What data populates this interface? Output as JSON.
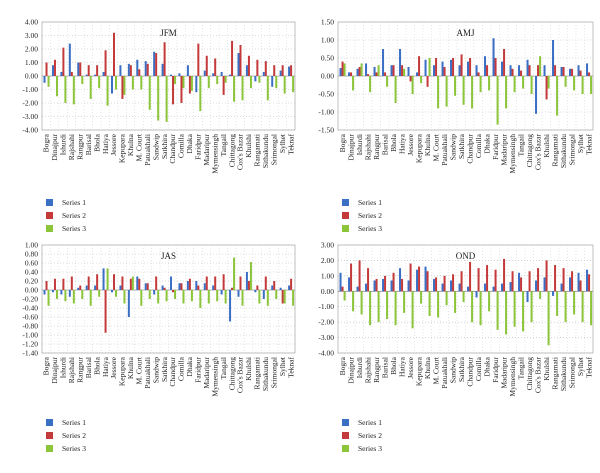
{
  "chart_data": [
    {
      "type": "bar",
      "title": "JFM",
      "ylim": [
        -4,
        4
      ],
      "yticks": [
        "4.00",
        "3.00",
        "2.00",
        "1.00",
        "0.00",
        "-1.00",
        "-2.00",
        "-3.00",
        "-4.00"
      ],
      "grid": true,
      "legend_position": "bottom-left",
      "categories": [
        "Bogra",
        "Dinajpur",
        "Ishurdi",
        "Rajshahi",
        "Rangpur",
        "Barisal",
        "Bhola",
        "Hatiya",
        "Jessore",
        "Kepupara",
        "Khulna",
        "M. Court",
        "Patuakhali",
        "Sandwip",
        "Satkhira",
        "Chandpur",
        "Comilla",
        "Dhaka",
        "Faridpur",
        "Madaripur",
        "Mymensingh",
        "Tangail",
        "Chittagong",
        "Cox's Bazar",
        "Khulshi",
        "Rangamati",
        "Sithakundu",
        "Srimongal",
        "Sylhet",
        "Teknaf"
      ],
      "series": [
        {
          "name": "Series 1",
          "color": "#3a6fc4",
          "values": [
            -0.5,
            0.8,
            0.3,
            2.4,
            1.0,
            0.1,
            0.1,
            0.3,
            -1.3,
            0.8,
            0.9,
            1.2,
            1.1,
            1.8,
            0.9,
            0.1,
            0.2,
            0.8,
            -1.2,
            0.4,
            0.2,
            0.3,
            0.1,
            1.7,
            0.8,
            -0.4,
            0.3,
            -0.8,
            0.4,
            0.7
          ]
        },
        {
          "name": "Series 2",
          "color": "#c43a3a",
          "values": [
            1.0,
            1.2,
            2.1,
            0.3,
            1.0,
            0.8,
            0.8,
            1.9,
            3.2,
            -1.7,
            0.8,
            0.5,
            0.9,
            1.7,
            2.5,
            -2.1,
            -2.0,
            -1.3,
            2.4,
            1.5,
            1.3,
            -1.4,
            2.6,
            2.3,
            1.5,
            1.2,
            1.1,
            0.8,
            0.8,
            0.8
          ]
        },
        {
          "name": "Series 3",
          "color": "#8cc43a",
          "values": [
            -0.8,
            -1.5,
            -2.0,
            -2.1,
            -0.6,
            -1.7,
            -0.9,
            -2.2,
            -1.0,
            -1.4,
            -1.0,
            -1.0,
            -2.5,
            -3.3,
            -3.4,
            -0.6,
            -0.9,
            -1.1,
            -2.6,
            -0.9,
            -0.6,
            -0.5,
            -1.9,
            -1.8,
            -0.9,
            -0.5,
            -1.8,
            -0.9,
            -1.3,
            -1.2
          ]
        }
      ]
    },
    {
      "type": "bar",
      "title": "AMJ",
      "ylim": [
        -1.5,
        1.5
      ],
      "yticks": [
        "1.50",
        "1.00",
        "0.50",
        "0.00",
        "-0.50",
        "-1.00",
        "-1.50"
      ],
      "grid": true,
      "legend_position": "bottom-left",
      "categories": [
        "Bogra",
        "Dinajpur",
        "Ishurdi",
        "Rajshahi",
        "Rangpur",
        "Barisal",
        "Bhola",
        "Hatiya",
        "Jessore",
        "Kepupara",
        "Khulna",
        "M. Court",
        "Patuakhali",
        "Sandwip",
        "Satkhira",
        "Chandpur",
        "Comilla",
        "Dhaka",
        "Faridpur",
        "Madaripur",
        "Mymensingh",
        "Tangail",
        "Chittagong",
        "Cox's Bazar",
        "Khulshi",
        "Rangamati",
        "Sithakundu",
        "Srimongal",
        "Sylhet",
        "Teknaf"
      ],
      "series": [
        {
          "name": "Series 1",
          "color": "#3a6fc4",
          "values": [
            0.22,
            0.1,
            0.2,
            0.35,
            0.25,
            0.75,
            0.3,
            0.75,
            0.25,
            0.1,
            0.45,
            0.3,
            0.4,
            0.45,
            0.3,
            0.4,
            0.3,
            0.55,
            1.05,
            0.4,
            0.3,
            0.3,
            0.45,
            -1.05,
            0.3,
            1.0,
            0.25,
            0.2,
            0.3,
            0.35
          ]
        },
        {
          "name": "Series 2",
          "color": "#c43a3a",
          "values": [
            0.4,
            0.1,
            0.25,
            0.05,
            0.1,
            0.1,
            0.3,
            0.3,
            -0.15,
            0.55,
            -0.3,
            0.5,
            0.25,
            0.5,
            0.6,
            0.5,
            0.1,
            0.3,
            0.5,
            0.75,
            0.2,
            0.15,
            0.3,
            0.3,
            -0.65,
            0.3,
            0.25,
            0.2,
            0.15,
            0.1
          ]
        },
        {
          "name": "Series 3",
          "color": "#8cc43a",
          "values": [
            0.35,
            -0.4,
            0.35,
            -0.45,
            0.3,
            -0.3,
            -0.75,
            0.2,
            -0.5,
            -0.2,
            0.5,
            -0.9,
            -0.85,
            -0.55,
            -0.8,
            -0.9,
            -0.45,
            -0.4,
            -1.35,
            -0.9,
            -0.45,
            -0.35,
            -0.5,
            0.55,
            -0.35,
            -1.1,
            -0.3,
            -0.4,
            -0.5,
            -0.5
          ]
        }
      ]
    },
    {
      "type": "bar",
      "title": "JAS",
      "ylim": [
        -1.4,
        1.0
      ],
      "yticks": [
        "1.00",
        "0.80",
        "0.60",
        "0.40",
        "0.20",
        "0.00",
        "-0.20",
        "-0.40",
        "-0.60",
        "-0.80",
        "-1.00",
        "-1.20",
        "-1.40"
      ],
      "grid": true,
      "legend_position": "bottom-left",
      "categories": [
        "Bogra",
        "Dinajpur",
        "Ishurdi",
        "Rajshahi",
        "Rangpur",
        "Barisal",
        "Bhola",
        "Hatiya",
        "Jessore",
        "Kepupara",
        "Khulna",
        "M. Court",
        "Patuakhali",
        "Sandwip",
        "Satkhira",
        "Chandpur",
        "Comilla",
        "Dhaka",
        "Faridpur",
        "Madaripur",
        "Mymensingh",
        "Tangail",
        "Chittagong",
        "Cox's Bazar",
        "Khulshi",
        "Rangamati",
        "Sithakundu",
        "Srimongal",
        "Sylhet",
        "Teknaf"
      ],
      "series": [
        {
          "name": "Series 1",
          "color": "#3a6fc4",
          "values": [
            -0.1,
            -0.05,
            -0.1,
            -0.15,
            0.05,
            0.1,
            0.1,
            0.48,
            -0.05,
            0.1,
            -0.6,
            0.3,
            0.15,
            -0.1,
            0.1,
            0.3,
            0.15,
            0.2,
            0.2,
            0.15,
            0.1,
            -0.1,
            -0.7,
            -0.15,
            0.4,
            -0.05,
            -0.2,
            0.1,
            0.05,
            0.1
          ]
        },
        {
          "name": "Series 2",
          "color": "#c43a3a",
          "values": [
            0.2,
            0.25,
            0.25,
            0.3,
            0.1,
            0.3,
            0.35,
            -0.95,
            0.35,
            0.3,
            0.25,
            0.25,
            0.15,
            0.3,
            0.05,
            -0.05,
            0.15,
            0.25,
            0.1,
            0.3,
            0.3,
            0.35,
            0.05,
            0.3,
            0.2,
            0.1,
            0.3,
            0.2,
            -0.3,
            0.25
          ]
        },
        {
          "name": "Series 3",
          "color": "#8cc43a",
          "values": [
            -0.35,
            -0.2,
            -0.25,
            -0.3,
            -0.2,
            -0.35,
            -0.15,
            0.48,
            -0.15,
            -0.3,
            0.3,
            -0.35,
            -0.2,
            -0.3,
            -0.25,
            -0.2,
            -0.3,
            -0.25,
            -0.4,
            -0.3,
            -0.25,
            -0.3,
            0.72,
            -0.35,
            0.62,
            -0.3,
            -0.35,
            -0.2,
            -0.3,
            -0.35
          ]
        }
      ]
    },
    {
      "type": "bar",
      "title": "OND",
      "ylim": [
        -4,
        3
      ],
      "yticks": [
        "3.00",
        "2.00",
        "1.00",
        "0.00",
        "-1.00",
        "-2.00",
        "-3.00",
        "-4.00"
      ],
      "grid": true,
      "legend_position": "bottom-left",
      "categories": [
        "Bogra",
        "Dinajpur",
        "Ishurdi",
        "Rajshahi",
        "Rangpur",
        "Barisal",
        "Bhola",
        "Hatiya",
        "Jessore",
        "Kepupara",
        "Khulna",
        "M. Court",
        "Patuakhali",
        "Sandwip",
        "Satkhira",
        "Chandpur",
        "Comilla",
        "Dhaka",
        "Faridpur",
        "Madaripur",
        "Mymensingh",
        "Tangail",
        "Chittagong",
        "Cox's Bazar",
        "Khulshi",
        "Rangamati",
        "Sithakundu",
        "Srimongal",
        "Sylhet",
        "Teknaf"
      ],
      "series": [
        {
          "name": "Series 1",
          "color": "#3a6fc4",
          "values": [
            1.2,
            0.9,
            0.3,
            0.5,
            0.7,
            0.8,
            0.7,
            1.5,
            0.7,
            1.4,
            1.6,
            0.8,
            0.5,
            0.7,
            0.5,
            0.3,
            -0.4,
            0.5,
            0.3,
            0.5,
            0.6,
            1.2,
            -0.7,
            0.7,
            0.9,
            -0.3,
            0.5,
            0.9,
            1.2,
            1.4
          ]
        },
        {
          "name": "Series 2",
          "color": "#c43a3a",
          "values": [
            0.3,
            1.8,
            2.0,
            1.5,
            0.8,
            1.0,
            1.2,
            0.8,
            1.8,
            1.6,
            1.3,
            0.9,
            1.0,
            1.1,
            1.3,
            1.9,
            1.5,
            1.7,
            1.4,
            2.1,
            1.3,
            0.9,
            1.3,
            1.5,
            2.0,
            1.7,
            1.5,
            1.3,
            0.7,
            1.1
          ]
        },
        {
          "name": "Series 3",
          "color": "#8cc43a",
          "values": [
            -0.6,
            -1.3,
            -1.5,
            -2.2,
            -2.0,
            -1.8,
            -2.2,
            -1.4,
            -2.4,
            -0.8,
            -1.6,
            -1.7,
            -0.9,
            -1.4,
            -0.7,
            -2.0,
            -2.2,
            -1.3,
            -2.5,
            -2.8,
            -2.3,
            -2.6,
            -2.0,
            -0.5,
            -3.5,
            -1.6,
            -2.0,
            -1.5,
            -2.0,
            -2.2
          ]
        }
      ]
    }
  ]
}
